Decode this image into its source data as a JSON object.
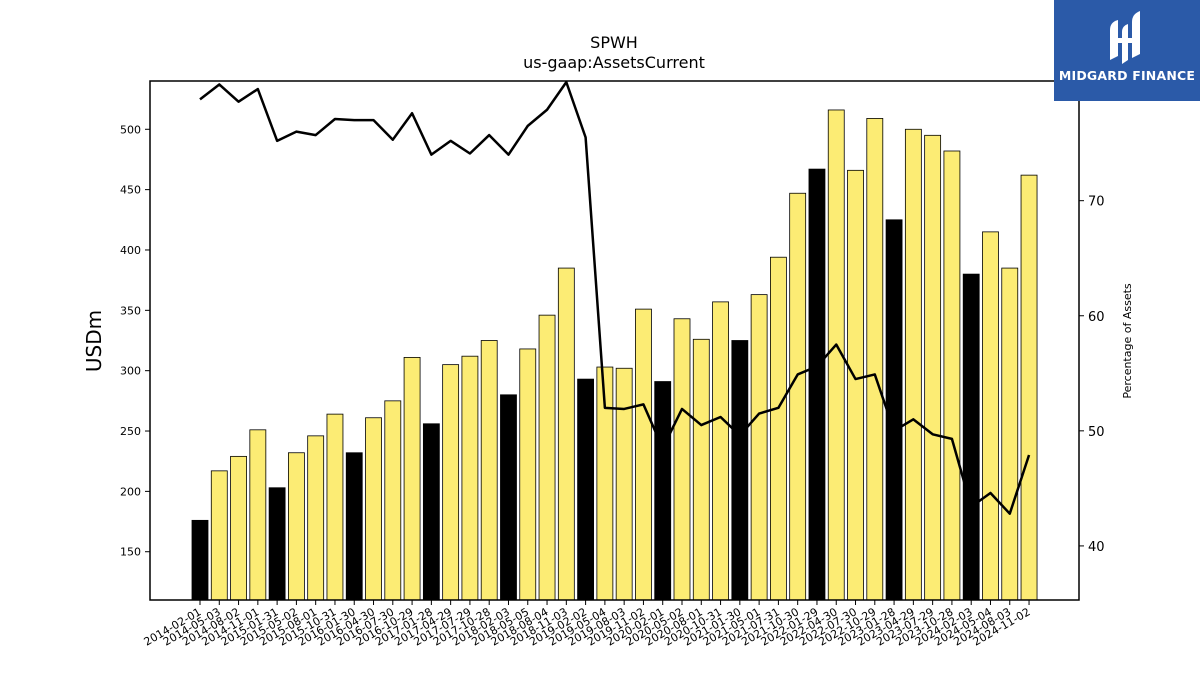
{
  "brand": {
    "name": "MIDGARD FINANCE",
    "bg_color": "#2b5aa8",
    "icon": "midgard-logo-icon"
  },
  "chart_data": {
    "type": "bar",
    "title": "SPWH",
    "subtitle": "us-gaap:AssetsCurrent",
    "ylabel": "USDm",
    "ylabel_right": "Percentage of Assets",
    "ylim": [
      110,
      540
    ],
    "ylim_right": [
      35.3,
      80.4
    ],
    "yticks": [
      150,
      200,
      250,
      300,
      350,
      400,
      450,
      500
    ],
    "yticks_right": [
      40,
      50,
      60,
      70,
      80
    ],
    "colors": {
      "fiscal_year_end": "#000000",
      "quarter": "#fcec74",
      "line": "#000000"
    },
    "categories": [
      "2014-02-01",
      "2014-05-03",
      "2014-08-02",
      "2014-11-01",
      "2015-01-31",
      "2015-05-02",
      "2015-08-01",
      "2015-10-31",
      "2016-01-30",
      "2016-04-30",
      "2016-07-30",
      "2016-10-29",
      "2017-01-28",
      "2017-04-29",
      "2017-07-29",
      "2017-10-28",
      "2018-02-03",
      "2018-05-05",
      "2018-08-04",
      "2018-11-03",
      "2019-02-02",
      "2019-05-04",
      "2019-08-03",
      "2019-11-02",
      "2020-02-01",
      "2020-05-02",
      "2020-08-01",
      "2020-10-31",
      "2021-01-30",
      "2021-05-01",
      "2021-07-31",
      "2021-10-30",
      "2022-01-29",
      "2022-04-30",
      "2022-07-30",
      "2022-10-29",
      "2023-01-28",
      "2023-04-29",
      "2023-07-29",
      "2023-10-28",
      "2024-02-03",
      "2024-05-04",
      "2024-08-03",
      "2024-11-02"
    ],
    "series": [
      {
        "kind": "bar",
        "values": [
          176,
          217,
          229,
          251,
          203,
          232,
          246,
          264,
          232,
          261,
          275,
          311,
          256,
          305,
          312,
          325,
          280,
          318,
          346,
          385,
          293,
          303,
          302,
          351,
          291,
          343,
          326,
          357,
          325,
          363,
          394,
          447,
          467,
          516,
          466,
          509,
          425,
          500,
          495,
          482,
          380,
          415,
          385,
          462
        ],
        "fiscal_year_end": [
          true,
          false,
          false,
          false,
          true,
          false,
          false,
          false,
          true,
          false,
          false,
          false,
          true,
          false,
          false,
          false,
          true,
          false,
          false,
          false,
          true,
          false,
          false,
          false,
          true,
          false,
          false,
          false,
          true,
          false,
          false,
          false,
          true,
          false,
          false,
          false,
          true,
          false,
          false,
          false,
          true,
          false,
          false,
          false
        ]
      },
      {
        "kind": "line",
        "axis": "right",
        "values": [
          78.8,
          80.1,
          78.6,
          79.7,
          75.2,
          76.0,
          75.7,
          77.1,
          77.0,
          77.0,
          75.3,
          77.6,
          74.0,
          75.2,
          74.1,
          75.7,
          74.0,
          76.5,
          77.9,
          80.3,
          75.5,
          52.0,
          51.9,
          52.3,
          48.5,
          51.9,
          50.5,
          51.2,
          49.6,
          51.5,
          52.0,
          54.9,
          55.6,
          57.5,
          54.5,
          54.9,
          50.0,
          51.0,
          49.7,
          49.3,
          43.4,
          44.6,
          42.8,
          47.9
        ]
      }
    ]
  }
}
